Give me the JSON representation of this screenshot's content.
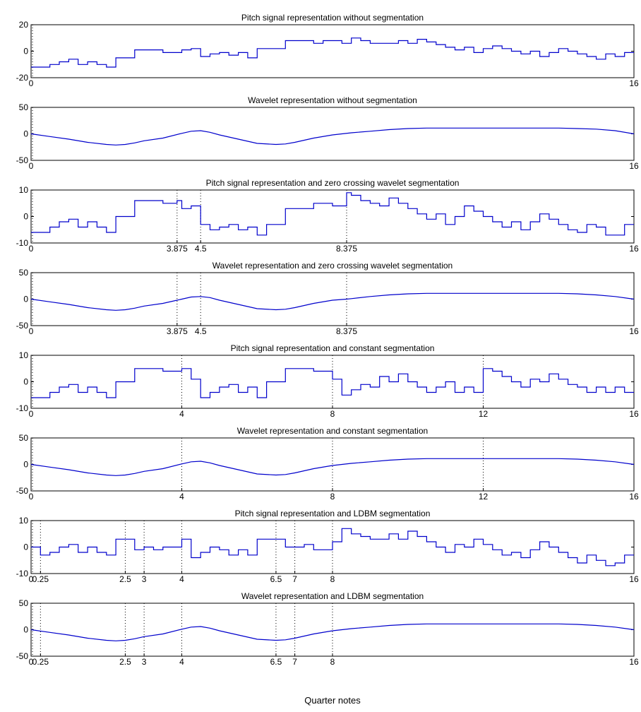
{
  "figure": {
    "xlabel": "Quarter notes",
    "line_color": "#0000cc",
    "frame_color": "#000000"
  },
  "chart_data": [
    {
      "type": "line",
      "step": true,
      "title": "Pitch signal representation without segmentation",
      "xlim": [
        0,
        16
      ],
      "ylim": [
        -20,
        20
      ],
      "yticks": [
        -20,
        0,
        20
      ],
      "xticks": [
        0,
        16
      ],
      "xtick_labels": [
        "0",
        "16"
      ],
      "segments": [
        0
      ],
      "x": [
        0,
        0.25,
        0.5,
        0.75,
        1,
        1.25,
        1.5,
        1.75,
        2,
        2.25,
        2.5,
        2.75,
        3,
        3.25,
        3.5,
        3.75,
        4,
        4.25,
        4.5,
        4.75,
        5,
        5.25,
        5.5,
        5.75,
        6,
        6.25,
        6.5,
        6.75,
        7,
        7.25,
        7.5,
        7.75,
        8,
        8.25,
        8.5,
        8.75,
        9,
        9.25,
        9.5,
        9.75,
        10,
        10.25,
        10.5,
        10.75,
        11,
        11.25,
        11.5,
        11.75,
        12,
        12.25,
        12.5,
        12.75,
        13,
        13.25,
        13.5,
        13.75,
        14,
        14.25,
        14.5,
        14.75,
        15,
        15.25,
        15.5,
        15.75
      ],
      "values": [
        -12,
        -12,
        -10,
        -8,
        -6,
        -10,
        -8,
        -10,
        -12,
        -5,
        -5,
        1,
        1,
        1,
        -1,
        -1,
        1,
        2,
        -4,
        -2,
        -1,
        -3,
        -1,
        -5,
        2,
        2,
        2,
        8,
        8,
        8,
        6,
        8,
        8,
        6,
        10,
        8,
        6,
        6,
        6,
        8,
        6,
        9,
        7,
        5,
        3,
        1,
        3,
        -1,
        2,
        4,
        2,
        0,
        -2,
        0,
        -4,
        -1,
        2,
        0,
        -2,
        -4,
        -6,
        -2,
        -4,
        -1
      ]
    },
    {
      "type": "line",
      "title": "Wavelet representation without segmentation",
      "xlim": [
        0,
        16
      ],
      "ylim": [
        -50,
        50
      ],
      "yticks": [
        -50,
        0,
        50
      ],
      "xticks": [
        0,
        16
      ],
      "xtick_labels": [
        "0",
        "16"
      ],
      "segments": [
        0
      ],
      "x": [
        0,
        0.5,
        1,
        1.5,
        2,
        2.25,
        2.5,
        2.75,
        3,
        3.5,
        4,
        4.25,
        4.5,
        4.75,
        5,
        5.5,
        6,
        6.5,
        6.75,
        7,
        7.5,
        8,
        8.5,
        9,
        9.5,
        10,
        10.5,
        11,
        11.5,
        12,
        12.5,
        13,
        13.5,
        14,
        14.5,
        15,
        15.5,
        16
      ],
      "values": [
        0,
        -5,
        -10,
        -16,
        -20,
        -21,
        -20,
        -17,
        -13,
        -8,
        1,
        5,
        6,
        3,
        -2,
        -10,
        -18,
        -20,
        -19,
        -16,
        -8,
        -2,
        2,
        5,
        8,
        10,
        11,
        11,
        11,
        11,
        11,
        11,
        11,
        11,
        10,
        9,
        6,
        0
      ]
    },
    {
      "type": "line",
      "step": true,
      "title": "Pitch signal representation and zero crossing wavelet segmentation",
      "xlim": [
        0,
        16
      ],
      "ylim": [
        -10,
        10
      ],
      "yticks": [
        -10,
        0,
        10
      ],
      "xticks": [
        0,
        3.875,
        4.5,
        8.375,
        16
      ],
      "xtick_labels": [
        "0",
        "3.875",
        "4.5",
        "8.375",
        "16"
      ],
      "segments": [
        0,
        3.875,
        4.5,
        8.375
      ],
      "x": [
        0,
        0.25,
        0.5,
        0.75,
        1,
        1.25,
        1.5,
        1.75,
        2,
        2.25,
        2.5,
        2.75,
        3,
        3.25,
        3.5,
        3.75,
        3.875,
        4,
        4.25,
        4.5,
        4.75,
        5,
        5.25,
        5.5,
        5.75,
        6,
        6.25,
        6.5,
        6.75,
        7,
        7.25,
        7.5,
        7.75,
        8,
        8.25,
        8.375,
        8.5,
        8.75,
        9,
        9.25,
        9.5,
        9.75,
        10,
        10.25,
        10.5,
        10.75,
        11,
        11.25,
        11.5,
        11.75,
        12,
        12.25,
        12.5,
        12.75,
        13,
        13.25,
        13.5,
        13.75,
        14,
        14.25,
        14.5,
        14.75,
        15,
        15.25,
        15.5,
        15.75
      ],
      "values": [
        -6,
        -6,
        -4,
        -2,
        -1,
        -4,
        -2,
        -4,
        -6,
        0,
        0,
        6,
        6,
        6,
        5,
        5,
        6,
        3,
        4,
        -3,
        -5,
        -4,
        -3,
        -5,
        -4,
        -7,
        -3,
        -3,
        3,
        3,
        3,
        5,
        5,
        4,
        4,
        9,
        8,
        6,
        5,
        4,
        7,
        5,
        3,
        1,
        -1,
        1,
        -3,
        0,
        4,
        2,
        0,
        -2,
        -4,
        -2,
        -5,
        -2,
        1,
        -1,
        -3,
        -5,
        -6,
        -3,
        -4,
        -7,
        -7,
        -3
      ]
    },
    {
      "type": "line",
      "title": "Wavelet representation and zero crossing wavelet segmentation",
      "xlim": [
        0,
        16
      ],
      "ylim": [
        -50,
        50
      ],
      "yticks": [
        -50,
        0,
        50
      ],
      "xticks": [
        0,
        3.875,
        4.5,
        8.375,
        16
      ],
      "xtick_labels": [
        "0",
        "3.875",
        "4.5",
        "8.375",
        "16"
      ],
      "segments": [
        0,
        3.875,
        4.5,
        8.375
      ],
      "x": [
        0,
        0.5,
        1,
        1.5,
        2,
        2.25,
        2.5,
        2.75,
        3,
        3.5,
        3.875,
        4,
        4.25,
        4.5,
        4.75,
        5,
        5.5,
        6,
        6.5,
        6.75,
        7,
        7.5,
        8,
        8.375,
        8.5,
        9,
        9.5,
        10,
        10.5,
        11,
        11.5,
        12,
        12.5,
        13,
        13.5,
        14,
        14.5,
        15,
        15.5,
        16
      ],
      "values": [
        0,
        -5,
        -10,
        -16,
        -20,
        -21,
        -20,
        -17,
        -13,
        -8,
        -2,
        0,
        4,
        5,
        3,
        -2,
        -10,
        -18,
        -20,
        -19,
        -16,
        -8,
        -2,
        0,
        1,
        5,
        8,
        10,
        11,
        11,
        11,
        11,
        11,
        11,
        11,
        11,
        10,
        8,
        5,
        0
      ]
    },
    {
      "type": "line",
      "step": true,
      "title": "Pitch signal representation and constant segmentation",
      "xlim": [
        0,
        16
      ],
      "ylim": [
        -10,
        10
      ],
      "yticks": [
        -10,
        0,
        10
      ],
      "xticks": [
        0,
        4,
        8,
        12,
        16
      ],
      "xtick_labels": [
        "0",
        "4",
        "8",
        "12",
        "16"
      ],
      "segments": [
        0,
        4,
        8,
        12
      ],
      "x": [
        0,
        0.25,
        0.5,
        0.75,
        1,
        1.25,
        1.5,
        1.75,
        2,
        2.25,
        2.5,
        2.75,
        3,
        3.25,
        3.5,
        3.75,
        4,
        4.25,
        4.5,
        4.75,
        5,
        5.25,
        5.5,
        5.75,
        6,
        6.25,
        6.5,
        6.75,
        7,
        7.25,
        7.5,
        7.75,
        8,
        8.25,
        8.5,
        8.75,
        9,
        9.25,
        9.5,
        9.75,
        10,
        10.25,
        10.5,
        10.75,
        11,
        11.25,
        11.5,
        11.75,
        12,
        12.25,
        12.5,
        12.75,
        13,
        13.25,
        13.5,
        13.75,
        14,
        14.25,
        14.5,
        14.75,
        15,
        15.25,
        15.5,
        15.75
      ],
      "values": [
        -6,
        -6,
        -4,
        -2,
        -1,
        -4,
        -2,
        -4,
        -6,
        0,
        0,
        5,
        5,
        5,
        4,
        4,
        5,
        1,
        -6,
        -4,
        -2,
        -1,
        -4,
        -2,
        -6,
        0,
        0,
        5,
        5,
        5,
        4,
        4,
        1,
        -5,
        -3,
        -1,
        -2,
        2,
        0,
        3,
        0,
        -2,
        -4,
        -2,
        0,
        -4,
        -2,
        -4,
        5,
        4,
        2,
        0,
        -2,
        1,
        0,
        3,
        1,
        -1,
        -2,
        -4,
        -2,
        -4,
        -2,
        -4
      ]
    },
    {
      "type": "line",
      "title": "Wavelet representation and constant segmentation",
      "xlim": [
        0,
        16
      ],
      "ylim": [
        -50,
        50
      ],
      "yticks": [
        -50,
        0,
        50
      ],
      "xticks": [
        0,
        4,
        8,
        12,
        16
      ],
      "xtick_labels": [
        "0",
        "4",
        "8",
        "12",
        "16"
      ],
      "segments": [
        0,
        4,
        8,
        12
      ],
      "x": [
        0,
        0.5,
        1,
        1.5,
        2,
        2.25,
        2.5,
        2.75,
        3,
        3.5,
        4,
        4.25,
        4.5,
        4.75,
        5,
        5.5,
        6,
        6.5,
        6.75,
        7,
        7.5,
        8,
        8.5,
        9,
        9.5,
        10,
        10.5,
        11,
        11.5,
        12,
        12.5,
        13,
        13.5,
        14,
        14.5,
        15,
        15.5,
        16
      ],
      "values": [
        0,
        -5,
        -10,
        -16,
        -20,
        -21,
        -20,
        -17,
        -13,
        -8,
        1,
        5,
        6,
        3,
        -2,
        -10,
        -18,
        -20,
        -19,
        -16,
        -8,
        -2,
        2,
        5,
        8,
        10,
        11,
        11,
        11,
        11,
        11,
        11,
        11,
        11,
        10,
        8,
        5,
        0
      ]
    },
    {
      "type": "line",
      "step": true,
      "title": "Pitch signal representation and LDBM segmentation",
      "xlim": [
        0,
        16
      ],
      "ylim": [
        -10,
        10
      ],
      "yticks": [
        -10,
        0,
        10
      ],
      "xticks": [
        0,
        0.25,
        2.5,
        3,
        4,
        6.5,
        7,
        8,
        16
      ],
      "xtick_labels": [
        "0",
        "0.25",
        "2.5",
        "3",
        "4",
        "6.5",
        "7",
        "8",
        "16"
      ],
      "segments": [
        0,
        0.25,
        2.5,
        3,
        4,
        6.5,
        7,
        8
      ],
      "x": [
        0,
        0.25,
        0.5,
        0.75,
        1,
        1.25,
        1.5,
        1.75,
        2,
        2.25,
        2.5,
        2.75,
        3,
        3.25,
        3.5,
        3.75,
        4,
        4.25,
        4.5,
        4.75,
        5,
        5.25,
        5.5,
        5.75,
        6,
        6.25,
        6.5,
        6.75,
        7,
        7.25,
        7.5,
        7.75,
        8,
        8.25,
        8.5,
        8.75,
        9,
        9.25,
        9.5,
        9.75,
        10,
        10.25,
        10.5,
        10.75,
        11,
        11.25,
        11.5,
        11.75,
        12,
        12.25,
        12.5,
        12.75,
        13,
        13.25,
        13.5,
        13.75,
        14,
        14.25,
        14.5,
        14.75,
        15,
        15.25,
        15.5,
        15.75
      ],
      "values": [
        0,
        -3,
        -2,
        0,
        1,
        -2,
        0,
        -2,
        -3,
        3,
        3,
        -1,
        0,
        -1,
        0,
        0,
        3,
        -4,
        -2,
        0,
        -1,
        -3,
        -1,
        -3,
        3,
        3,
        3,
        0,
        0,
        1,
        -1,
        -1,
        2,
        7,
        5,
        4,
        3,
        3,
        5,
        3,
        6,
        4,
        2,
        0,
        -2,
        1,
        0,
        3,
        1,
        -1,
        -3,
        -2,
        -4,
        -1,
        2,
        0,
        -2,
        -4,
        -6,
        -3,
        -5,
        -7,
        -6,
        -3
      ]
    },
    {
      "type": "line",
      "title": "Wavelet representation and LDBM segmentation",
      "xlim": [
        0,
        16
      ],
      "ylim": [
        -50,
        50
      ],
      "yticks": [
        -50,
        0,
        50
      ],
      "xticks": [
        0,
        0.25,
        2.5,
        3,
        4,
        6.5,
        7,
        8,
        16
      ],
      "xtick_labels": [
        "0",
        "0.25",
        "2.5",
        "3",
        "4",
        "6.5",
        "7",
        "8",
        "16"
      ],
      "segments": [
        0,
        0.25,
        2.5,
        3,
        4,
        6.5,
        7,
        8
      ],
      "x": [
        0,
        0.5,
        1,
        1.5,
        2,
        2.25,
        2.5,
        2.75,
        3,
        3.5,
        4,
        4.25,
        4.5,
        4.75,
        5,
        5.5,
        6,
        6.5,
        6.75,
        7,
        7.5,
        8,
        8.5,
        9,
        9.5,
        10,
        10.5,
        11,
        11.5,
        12,
        12.5,
        13,
        13.5,
        14,
        14.5,
        15,
        15.5,
        16
      ],
      "values": [
        0,
        -5,
        -10,
        -16,
        -20,
        -21,
        -20,
        -17,
        -13,
        -8,
        1,
        5,
        6,
        3,
        -2,
        -10,
        -18,
        -20,
        -19,
        -16,
        -8,
        -2,
        2,
        5,
        8,
        10,
        11,
        11,
        11,
        11,
        11,
        11,
        11,
        11,
        10,
        8,
        5,
        0
      ]
    }
  ]
}
